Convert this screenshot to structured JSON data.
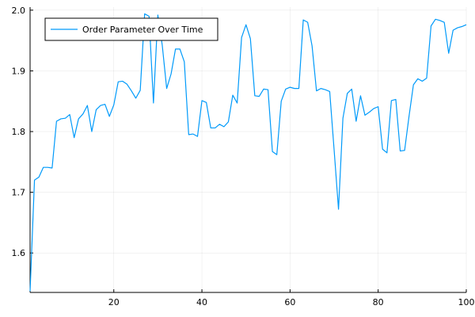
{
  "chart_data": {
    "type": "line",
    "title": "",
    "xlabel": "",
    "ylabel": "",
    "xlim": [
      1,
      100
    ],
    "ylim": [
      1.535,
      2.005
    ],
    "xticks": [
      20,
      40,
      60,
      80,
      100
    ],
    "yticks": [
      1.6,
      1.7,
      1.8,
      1.9,
      2.0
    ],
    "xtick_labels": [
      "20",
      "40",
      "60",
      "80",
      "100"
    ],
    "ytick_labels": [
      "1.6",
      "1.7",
      "1.8",
      "1.9",
      "2.0"
    ],
    "grid": true,
    "legend_position": "top-left",
    "series": [
      {
        "name": "Order Parameter Over Time",
        "color": "#009AFA",
        "x": [
          1,
          2,
          3,
          4,
          5,
          6,
          7,
          8,
          9,
          10,
          11,
          12,
          13,
          14,
          15,
          16,
          17,
          18,
          19,
          20,
          21,
          22,
          23,
          24,
          25,
          26,
          27,
          28,
          29,
          30,
          31,
          32,
          33,
          34,
          35,
          36,
          37,
          38,
          39,
          40,
          41,
          42,
          43,
          44,
          45,
          46,
          47,
          48,
          49,
          50,
          51,
          52,
          53,
          54,
          55,
          56,
          57,
          58,
          59,
          60,
          61,
          62,
          63,
          64,
          65,
          66,
          67,
          68,
          69,
          70,
          71,
          72,
          73,
          74,
          75,
          76,
          77,
          78,
          79,
          80,
          81,
          82,
          83,
          84,
          85,
          86,
          87,
          88,
          89,
          90,
          91,
          92,
          93,
          94,
          95,
          96,
          97,
          98,
          99,
          100
        ],
        "y": [
          1.537,
          1.72,
          1.725,
          1.741,
          1.741,
          1.74,
          1.817,
          1.821,
          1.822,
          1.828,
          1.79,
          1.821,
          1.829,
          1.843,
          1.8,
          1.836,
          1.843,
          1.845,
          1.825,
          1.844,
          1.882,
          1.883,
          1.878,
          1.867,
          1.855,
          1.868,
          1.994,
          1.99,
          1.847,
          1.992,
          1.942,
          1.871,
          1.895,
          1.936,
          1.936,
          1.915,
          1.795,
          1.796,
          1.792,
          1.851,
          1.848,
          1.806,
          1.806,
          1.812,
          1.808,
          1.816,
          1.86,
          1.847,
          1.955,
          1.976,
          1.953,
          1.859,
          1.858,
          1.87,
          1.869,
          1.767,
          1.762,
          1.85,
          1.87,
          1.873,
          1.871,
          1.871,
          1.984,
          1.98,
          1.941,
          1.867,
          1.871,
          1.869,
          1.866,
          1.77,
          1.672,
          1.822,
          1.863,
          1.87,
          1.817,
          1.859,
          1.827,
          1.832,
          1.838,
          1.841,
          1.771,
          1.765,
          1.851,
          1.853,
          1.768,
          1.769,
          1.825,
          1.877,
          1.887,
          1.883,
          1.888,
          1.974,
          1.985,
          1.983,
          1.98,
          1.929,
          1.967,
          1.971,
          1.973,
          1.976
        ]
      }
    ]
  }
}
